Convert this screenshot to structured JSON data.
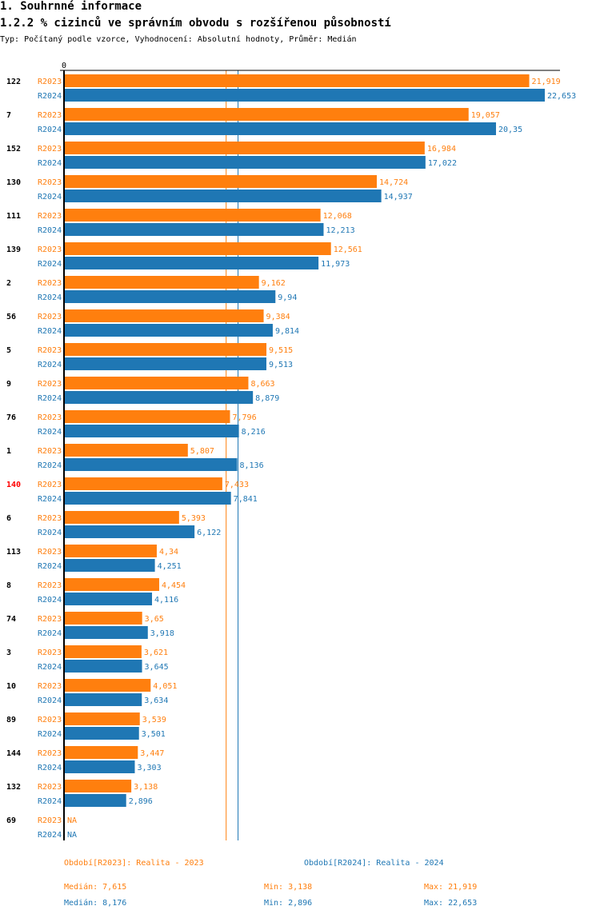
{
  "header": {
    "section": "1. Souhrnné informace",
    "title": "1.2.2 % cizinců ve správním obvodu s rozšířenou působností",
    "subtitle": "Typ: Počítaný podle vzorce, Vyhodnocení: Absolutní hodnoty, Průměr: Medián"
  },
  "colors": {
    "R2023": "#ff7f0e",
    "R2024": "#1f77b4",
    "highlight": "#ff0000"
  },
  "chart_data": {
    "type": "bar",
    "orientation": "horizontal",
    "xlim": [
      0,
      22.653
    ],
    "zero_label": "0",
    "highlight_category": "140",
    "categories": [
      "122",
      "7",
      "152",
      "130",
      "111",
      "139",
      "2",
      "56",
      "5",
      "9",
      "76",
      "1",
      "140",
      "6",
      "113",
      "8",
      "74",
      "3",
      "10",
      "89",
      "144",
      "132",
      "69"
    ],
    "series": [
      {
        "name": "R2023",
        "values": [
          21.919,
          19.057,
          16.984,
          14.724,
          12.068,
          12.561,
          9.162,
          9.384,
          9.515,
          8.663,
          7.796,
          5.807,
          7.433,
          5.393,
          4.34,
          4.454,
          3.65,
          3.621,
          4.051,
          3.539,
          3.447,
          3.138,
          null
        ],
        "labels": [
          "21,919",
          "19,057",
          "16,984",
          "14,724",
          "12,068",
          "12,561",
          "9,162",
          "9,384",
          "9,515",
          "8,663",
          "7,796",
          "5,807",
          "7,433",
          "5,393",
          "4,34",
          "4,454",
          "3,65",
          "3,621",
          "4,051",
          "3,539",
          "3,447",
          "3,138",
          "NA"
        ],
        "median": 7.615
      },
      {
        "name": "R2024",
        "values": [
          22.653,
          20.35,
          17.022,
          14.937,
          12.213,
          11.973,
          9.94,
          9.814,
          9.513,
          8.879,
          8.216,
          8.136,
          7.841,
          6.122,
          4.251,
          4.116,
          3.918,
          3.645,
          3.634,
          3.501,
          3.303,
          2.896,
          null
        ],
        "labels": [
          "22,653",
          "20,35",
          "17,022",
          "14,937",
          "12,213",
          "11,973",
          "9,94",
          "9,814",
          "9,513",
          "8,879",
          "8,216",
          "8,136",
          "7,841",
          "6,122",
          "4,251",
          "4,116",
          "3,918",
          "3,645",
          "3,634",
          "3,501",
          "3,303",
          "2,896",
          "NA"
        ],
        "median": 8.176
      }
    ]
  },
  "legend": {
    "r2023": "Období[R2023]: Realita - 2023",
    "r2024": "Období[R2024]: Realita - 2024"
  },
  "stats": {
    "r2023": {
      "median": "Medián: 7,615",
      "min": "Min: 3,138",
      "max": "Max: 21,919"
    },
    "r2024": {
      "median": "Medián: 8,176",
      "min": "Min: 2,896",
      "max": "Max: 22,653"
    }
  }
}
